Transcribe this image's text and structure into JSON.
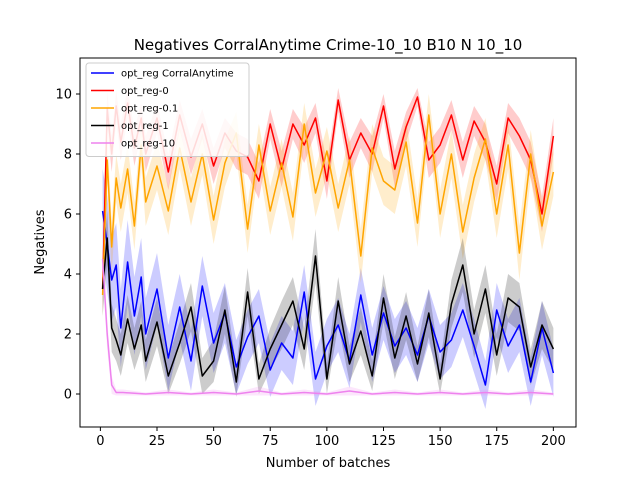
{
  "chart_data": {
    "type": "line",
    "title": "Negatives CorralAnytime Crime-10_10 B10 N 10_10",
    "xlabel": "Number of batches",
    "ylabel": "Negatives",
    "xlim": [
      -9,
      210
    ],
    "ylim": [
      -1.1,
      11.2
    ],
    "xticks": [
      0,
      25,
      50,
      75,
      100,
      125,
      150,
      175,
      200
    ],
    "yticks": [
      0,
      2,
      4,
      6,
      8,
      10
    ],
    "legend_position": "top-left",
    "grid": false,
    "series": [
      {
        "name": "opt_reg CorralAnytime",
        "color": "#0000ff",
        "x": [
          1,
          3,
          5,
          7,
          9,
          12,
          15,
          18,
          20,
          25,
          30,
          35,
          40,
          45,
          50,
          55,
          60,
          65,
          70,
          75,
          80,
          85,
          90,
          95,
          100,
          105,
          110,
          115,
          120,
          125,
          130,
          135,
          140,
          145,
          150,
          155,
          160,
          165,
          170,
          175,
          180,
          185,
          190,
          195,
          200
        ],
        "values": [
          6.1,
          5.0,
          3.8,
          4.3,
          2.2,
          4.4,
          2.6,
          3.9,
          2.0,
          3.5,
          1.2,
          2.9,
          1.1,
          3.6,
          1.7,
          2.7,
          0.9,
          1.9,
          2.6,
          0.8,
          1.7,
          1.2,
          3.4,
          0.5,
          1.6,
          2.3,
          1.1,
          3.3,
          1.3,
          2.7,
          1.6,
          2.2,
          1.3,
          2.6,
          1.4,
          1.8,
          2.8,
          1.6,
          0.3,
          2.8,
          1.6,
          2.3,
          0.4,
          2.2,
          0.7
        ],
        "band": [
          1.4,
          1.6,
          1.4,
          1.4,
          1.3,
          1.4,
          1.3,
          1.3,
          1.2,
          1.2,
          1.1,
          1.1,
          1.0,
          1.0,
          1.0,
          1.0,
          0.9,
          0.9,
          0.9,
          0.9,
          0.9,
          0.9,
          0.9,
          0.9,
          0.9,
          0.9,
          0.9,
          0.9,
          0.9,
          0.9,
          0.9,
          0.9,
          0.9,
          0.9,
          0.9,
          0.9,
          0.9,
          0.9,
          0.8,
          0.9,
          0.9,
          0.9,
          0.8,
          0.9,
          0.8
        ]
      },
      {
        "name": "opt_reg-0",
        "color": "#ff0000",
        "x": [
          1,
          3,
          5,
          7,
          9,
          12,
          15,
          18,
          20,
          25,
          30,
          35,
          40,
          45,
          50,
          55,
          60,
          65,
          70,
          75,
          80,
          85,
          90,
          95,
          100,
          105,
          110,
          115,
          120,
          125,
          130,
          135,
          140,
          145,
          150,
          155,
          160,
          165,
          170,
          175,
          180,
          185,
          190,
          195,
          200
        ],
        "values": [
          3.5,
          9.5,
          8.0,
          9.6,
          8.4,
          9.7,
          8.2,
          9.2,
          8.0,
          9.2,
          7.4,
          9.3,
          7.9,
          9.0,
          7.6,
          8.7,
          8.1,
          7.9,
          7.1,
          9.0,
          7.5,
          9.0,
          8.3,
          9.2,
          7.1,
          9.8,
          7.8,
          8.7,
          8.0,
          9.6,
          7.5,
          8.9,
          9.9,
          7.8,
          8.3,
          9.3,
          7.8,
          9.1,
          8.4,
          7.0,
          9.2,
          8.6,
          7.8,
          6.0,
          8.6
        ],
        "band": [
          0.8,
          0.6,
          0.6,
          0.5,
          0.6,
          0.5,
          0.6,
          0.5,
          0.6,
          0.5,
          0.6,
          0.5,
          0.6,
          0.5,
          0.6,
          0.5,
          0.6,
          0.6,
          0.6,
          0.5,
          0.6,
          0.5,
          0.6,
          0.5,
          0.6,
          0.4,
          0.6,
          0.5,
          0.6,
          0.4,
          0.6,
          0.5,
          0.3,
          0.6,
          0.6,
          0.5,
          0.6,
          0.5,
          0.6,
          0.6,
          0.5,
          0.6,
          0.6,
          0.6,
          0.6
        ]
      },
      {
        "name": "opt_reg-0.1",
        "color": "#ffa500",
        "x": [
          1,
          3,
          5,
          7,
          9,
          12,
          15,
          18,
          20,
          25,
          30,
          35,
          40,
          45,
          50,
          55,
          60,
          65,
          70,
          75,
          80,
          85,
          90,
          95,
          100,
          105,
          110,
          115,
          120,
          125,
          130,
          135,
          140,
          145,
          150,
          155,
          160,
          165,
          170,
          175,
          180,
          185,
          190,
          195,
          200
        ],
        "values": [
          3.3,
          7.8,
          4.9,
          7.2,
          6.2,
          7.5,
          5.6,
          8.3,
          6.4,
          7.6,
          6.1,
          8.2,
          6.4,
          8.0,
          5.8,
          7.7,
          8.7,
          5.5,
          8.3,
          6.1,
          7.7,
          5.9,
          9.0,
          6.7,
          8.1,
          6.2,
          7.8,
          4.6,
          8.2,
          7.1,
          6.8,
          8.4,
          5.7,
          9.3,
          6.0,
          8.0,
          5.4,
          7.2,
          8.5,
          6.0,
          8.3,
          4.7,
          8.0,
          5.6,
          7.4
        ],
        "band": [
          0.8,
          0.8,
          0.9,
          0.8,
          0.8,
          0.8,
          0.8,
          0.7,
          0.8,
          0.8,
          0.8,
          0.7,
          0.8,
          0.7,
          0.8,
          0.8,
          0.7,
          0.8,
          0.7,
          0.8,
          0.8,
          0.8,
          0.7,
          0.8,
          0.8,
          0.8,
          0.8,
          0.9,
          0.8,
          0.8,
          0.8,
          0.8,
          0.8,
          0.7,
          0.8,
          0.8,
          0.9,
          0.8,
          0.7,
          0.8,
          0.8,
          0.9,
          0.8,
          0.8,
          0.8
        ]
      },
      {
        "name": "opt_reg-1",
        "color": "#000000",
        "x": [
          1,
          3,
          5,
          7,
          9,
          12,
          15,
          18,
          20,
          25,
          30,
          35,
          40,
          45,
          50,
          55,
          60,
          65,
          70,
          75,
          80,
          85,
          90,
          95,
          100,
          105,
          110,
          115,
          120,
          125,
          130,
          135,
          140,
          145,
          150,
          155,
          160,
          165,
          170,
          175,
          180,
          185,
          190,
          195,
          200
        ],
        "values": [
          3.5,
          5.2,
          2.2,
          1.8,
          1.3,
          2.5,
          1.5,
          2.3,
          1.1,
          2.4,
          0.6,
          1.7,
          2.9,
          0.6,
          1.1,
          2.8,
          0.4,
          3.4,
          0.5,
          1.5,
          2.3,
          3.1,
          1.5,
          4.6,
          0.5,
          3.1,
          1.0,
          2.1,
          0.6,
          3.2,
          1.2,
          2.6,
          1.0,
          2.7,
          0.5,
          3.0,
          4.3,
          2.0,
          3.5,
          1.3,
          3.2,
          2.9,
          0.9,
          2.3,
          1.5
        ],
        "band": [
          0.9,
          0.9,
          0.8,
          0.7,
          0.7,
          0.8,
          0.7,
          0.8,
          0.7,
          0.8,
          0.6,
          0.7,
          0.8,
          0.6,
          0.7,
          0.8,
          0.5,
          0.8,
          0.5,
          0.7,
          0.8,
          0.8,
          0.7,
          0.9,
          0.5,
          0.8,
          0.6,
          0.8,
          0.5,
          0.8,
          0.7,
          0.8,
          0.6,
          0.8,
          0.5,
          0.8,
          0.9,
          0.8,
          0.8,
          0.7,
          0.8,
          0.8,
          0.6,
          0.8,
          0.7
        ]
      },
      {
        "name": "opt_reg-10",
        "color": "#ee82ee",
        "x": [
          1,
          3,
          5,
          7,
          10,
          20,
          30,
          40,
          50,
          60,
          70,
          80,
          90,
          100,
          110,
          120,
          130,
          140,
          150,
          160,
          170,
          180,
          190,
          200
        ],
        "values": [
          4.5,
          2.0,
          0.3,
          0.05,
          0.05,
          0.0,
          0.05,
          0.0,
          0.05,
          0.0,
          0.1,
          0.0,
          0.05,
          0.0,
          0.1,
          0.0,
          0.05,
          0.0,
          0.05,
          0.0,
          0.05,
          0.0,
          0.05,
          0.0
        ],
        "band": [
          0.5,
          0.5,
          0.3,
          0.1,
          0.1,
          0.05,
          0.1,
          0.05,
          0.1,
          0.05,
          0.15,
          0.05,
          0.1,
          0.05,
          0.15,
          0.05,
          0.1,
          0.05,
          0.1,
          0.05,
          0.1,
          0.05,
          0.1,
          0.05
        ]
      }
    ]
  }
}
